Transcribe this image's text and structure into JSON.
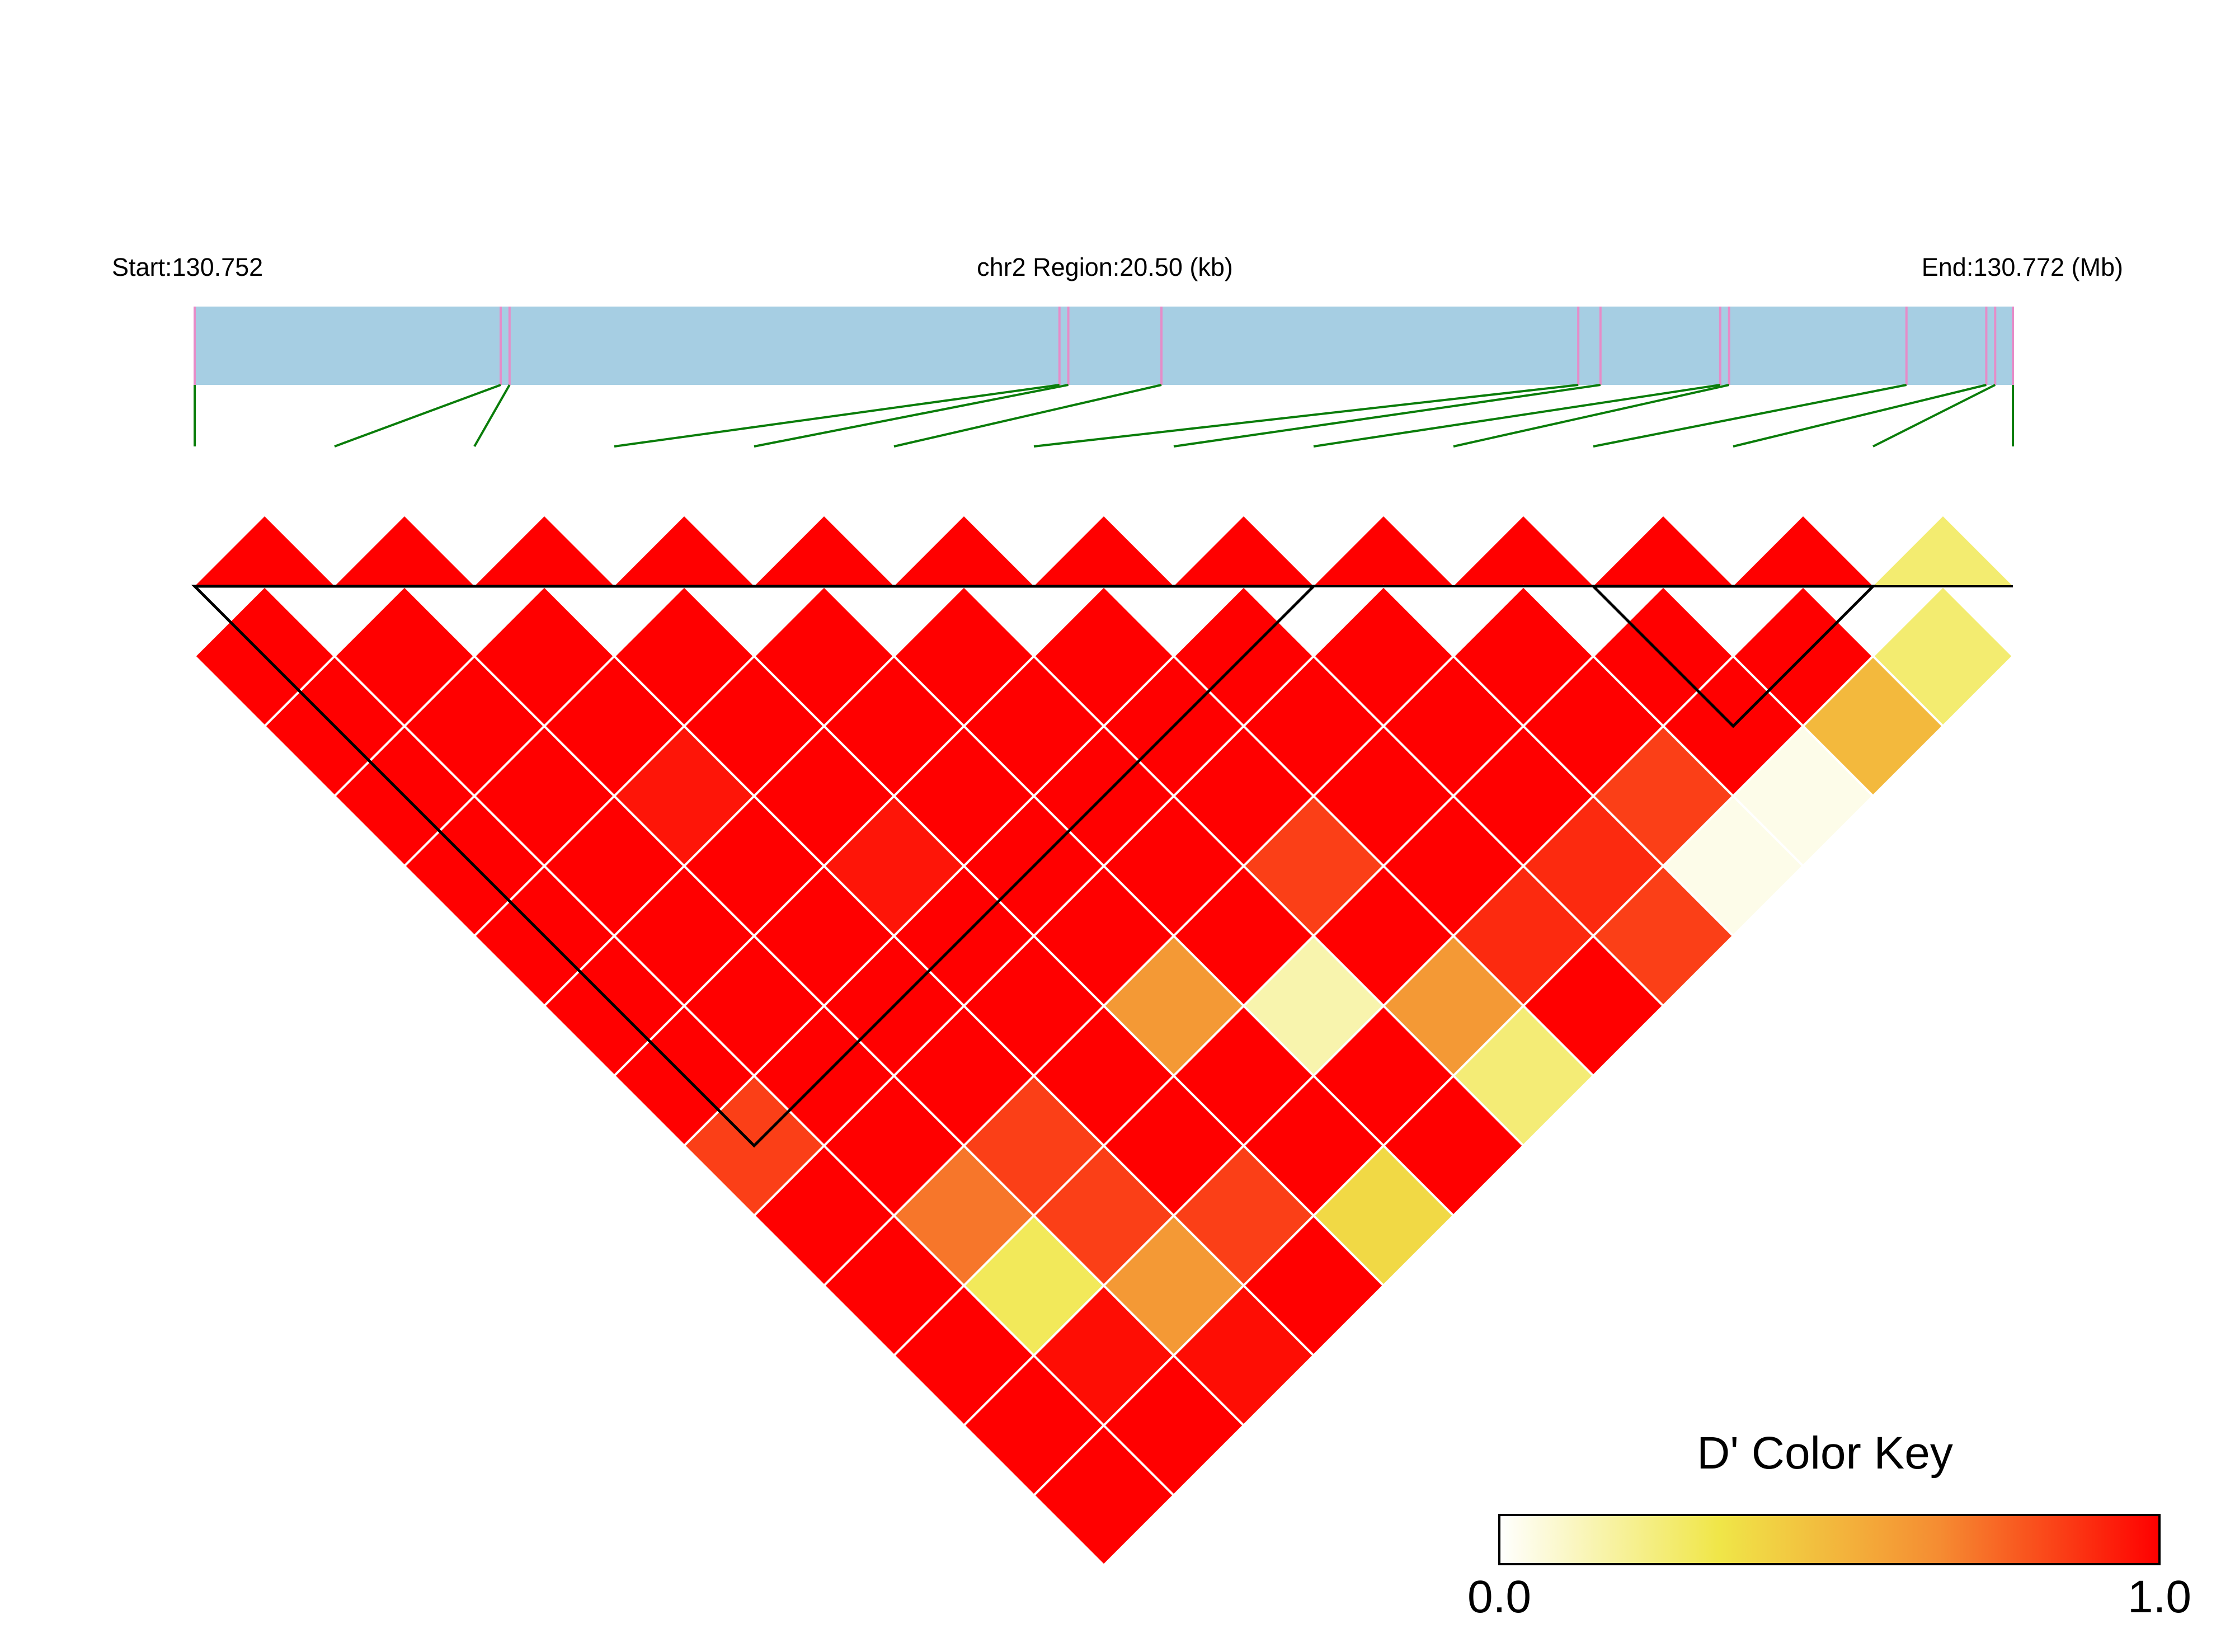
{
  "chart_data": {
    "type": "heatmap",
    "header": {
      "start_label": "Start:130.752",
      "region_label": "chr2 Region:20.50 (kb)",
      "end_label": "End:130.772 (Mb)"
    },
    "snp_count": 14,
    "snp_positions_kb": [
      0.0,
      3.45,
      3.55,
      9.75,
      9.85,
      10.9,
      15.6,
      15.85,
      17.2,
      17.3,
      19.3,
      20.2,
      20.3,
      20.5
    ],
    "color_key": {
      "title": "D' Color Key",
      "min_label": "0.0",
      "max_label": "1.0",
      "stops": [
        "#ffffff",
        "#f0e648",
        "#f58c32",
        "#ff0000"
      ]
    },
    "ld_dprime": [
      [
        1.0,
        1.0,
        1.0,
        1.0,
        1.0,
        1.0,
        1.0,
        1.0,
        1.0,
        1.0,
        1.0,
        1.0,
        0.26
      ],
      [
        1.0,
        1.0,
        1.0,
        1.0,
        1.0,
        1.0,
        1.0,
        1.0,
        1.0,
        1.0,
        1.0,
        0.5
      ],
      [
        1.0,
        1.0,
        0.95,
        1.0,
        1.0,
        1.0,
        1.0,
        1.0,
        1.0,
        0.85,
        0.04
      ],
      [
        1.0,
        1.0,
        1.0,
        0.95,
        1.0,
        1.0,
        0.85,
        1.0,
        0.9,
        0.04
      ],
      [
        1.0,
        1.0,
        1.0,
        1.0,
        1.0,
        1.0,
        1.0,
        0.9,
        0.85
      ],
      [
        1.0,
        1.0,
        1.0,
        1.0,
        0.62,
        0.15,
        0.62,
        1.0
      ],
      [
        1.0,
        1.0,
        1.0,
        1.0,
        1.0,
        1.0,
        0.25
      ],
      [
        0.85,
        1.0,
        0.85,
        1.0,
        1.0,
        1.0
      ],
      [
        1.0,
        0.72,
        0.85,
        0.85,
        0.38
      ],
      [
        1.0,
        0.3,
        0.62,
        1.0
      ],
      [
        1.0,
        0.97,
        0.97
      ],
      [
        1.0,
        1.0
      ],
      [
        1.0
      ]
    ],
    "blocks": [
      [
        1,
        9
      ],
      [
        11,
        13
      ]
    ]
  }
}
